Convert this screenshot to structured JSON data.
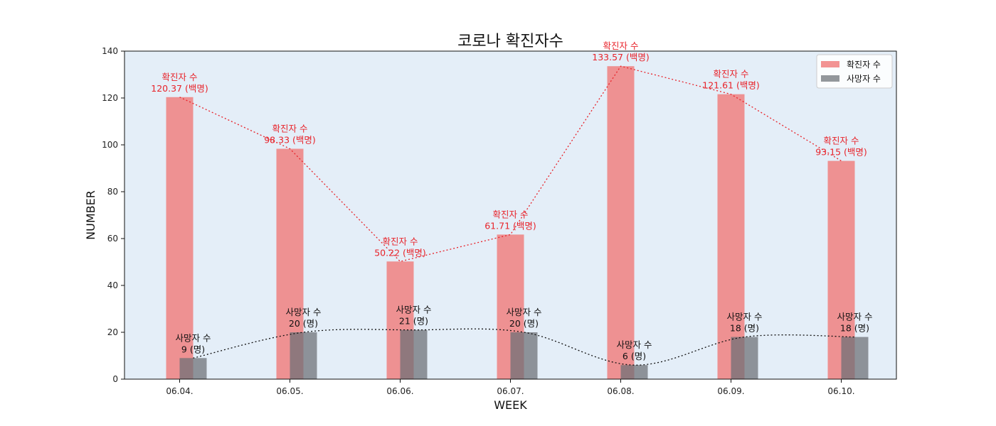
{
  "chart_data": {
    "type": "bar",
    "title": "코로나 확진자수",
    "xlabel": "WEEK",
    "ylabel": "NUMBER",
    "ylim": [
      0,
      140
    ],
    "yticks": [
      0,
      20,
      40,
      60,
      80,
      100,
      120,
      140
    ],
    "categories": [
      "06.04.",
      "06.05.",
      "06.06.",
      "06.07.",
      "06.08.",
      "06.09.",
      "06.10."
    ],
    "series": [
      {
        "name": "확진자 수",
        "values": [
          120.37,
          98.33,
          50.22,
          61.71,
          133.57,
          121.61,
          93.15
        ],
        "label_prefix": "확진자 수",
        "unit": "(백명)",
        "color": "#f08080",
        "label_color": "#e8232a",
        "line_color": "#e8232a"
      },
      {
        "name": "사망자 수",
        "values": [
          9,
          20,
          21,
          20,
          6,
          18,
          18
        ],
        "label_prefix": "사망자 수",
        "unit": "(명)",
        "color": "#6b6f75",
        "label_color": "#111111",
        "line_color": "#111111"
      }
    ],
    "background": "#e4eef8",
    "grid": false,
    "legend_position": "top-right"
  }
}
